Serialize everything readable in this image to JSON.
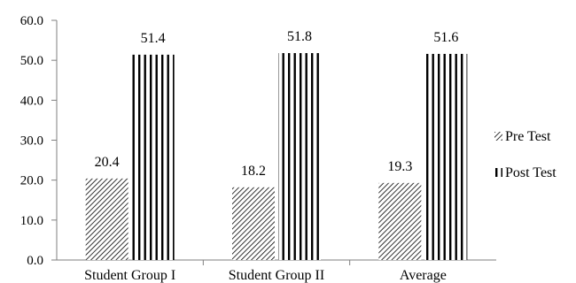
{
  "chart_data": {
    "type": "bar",
    "categories": [
      "Student Group I",
      "Student Group II",
      "Average"
    ],
    "series": [
      {
        "name": "Pre Test",
        "values": [
          20.4,
          18.2,
          19.3
        ],
        "pattern": "diagonal-hatch"
      },
      {
        "name": "Post Test",
        "values": [
          51.4,
          51.8,
          51.6
        ],
        "pattern": "vertical-stripes"
      }
    ],
    "data_labels": [
      [
        "20.4",
        "18.2",
        "19.3"
      ],
      [
        "51.4",
        "51.8",
        "51.6"
      ]
    ],
    "ylim": [
      0,
      60
    ],
    "yticks": [
      "0.0",
      "10.0",
      "20.0",
      "30.0",
      "40.0",
      "50.0",
      "60.0"
    ],
    "legend_position": "right",
    "grid": false,
    "colors": {
      "ink": "#000000",
      "axis": "#7f7f7f",
      "background": "#ffffff"
    }
  }
}
